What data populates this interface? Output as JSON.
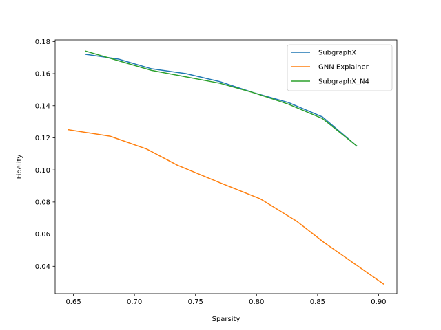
{
  "chart_data": {
    "type": "line",
    "title": "",
    "xlabel": "Sparsity",
    "ylabel": "Fidelity",
    "xlim": [
      0.635,
      0.915
    ],
    "ylim": [
      0.023,
      0.181
    ],
    "xticks": [
      0.65,
      0.7,
      0.75,
      0.8,
      0.85,
      0.9
    ],
    "xtick_labels": [
      "0.65",
      "0.70",
      "0.75",
      "0.80",
      "0.85",
      "0.90"
    ],
    "yticks": [
      0.04,
      0.06,
      0.08,
      0.1,
      0.12,
      0.14,
      0.16,
      0.18
    ],
    "ytick_labels": [
      "0.04",
      "0.06",
      "0.08",
      "0.10",
      "0.12",
      "0.14",
      "0.16",
      "0.18"
    ],
    "grid": false,
    "legend": "top-right",
    "series": [
      {
        "name": "SubgraphX",
        "color": "#1f77b4",
        "x": [
          0.66,
          0.687,
          0.714,
          0.742,
          0.77,
          0.798,
          0.826,
          0.854,
          0.882
        ],
        "y": [
          0.172,
          0.169,
          0.163,
          0.16,
          0.155,
          0.148,
          0.142,
          0.133,
          0.115
        ]
      },
      {
        "name": "GNN Explainer",
        "color": "#ff7f0e",
        "x": [
          0.646,
          0.68,
          0.71,
          0.735,
          0.77,
          0.803,
          0.833,
          0.855,
          0.904
        ],
        "y": [
          0.125,
          0.121,
          0.113,
          0.103,
          0.092,
          0.082,
          0.068,
          0.055,
          0.029
        ]
      },
      {
        "name": "SubgraphX_N4",
        "color": "#2ca02c",
        "x": [
          0.66,
          0.687,
          0.714,
          0.742,
          0.77,
          0.798,
          0.826,
          0.854,
          0.882
        ],
        "y": [
          0.174,
          0.168,
          0.162,
          0.158,
          0.154,
          0.148,
          0.141,
          0.132,
          0.115
        ]
      }
    ]
  }
}
